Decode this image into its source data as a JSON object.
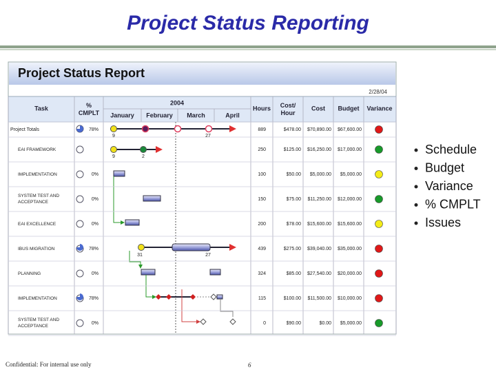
{
  "slide": {
    "title": "Project Status Reporting",
    "bullets": [
      "Schedule",
      "Budget",
      "Variance",
      "% CMPLT",
      "Issues"
    ],
    "footer": "Confidential: For internal use only",
    "page": "6"
  },
  "report": {
    "title": "Project Status Report",
    "date": "2/28/04",
    "headers": {
      "task": "Task",
      "pct": "% CMPLT",
      "year": "2004",
      "months": [
        "January",
        "February",
        "March",
        "April"
      ],
      "hours": "Hours",
      "cost_hour": "Cost/ Hour",
      "cost": "Cost",
      "budget": "Budget",
      "variance": "Variance"
    },
    "rows": [
      {
        "task": "Project Totals",
        "pct": "78%",
        "hours": "889",
        "cost_hour": "$478.00",
        "cost": "$70,890.00",
        "budget": "$67,600.00",
        "variance": "red",
        "marks": [
          "9",
          "27"
        ]
      },
      {
        "task": "EAI FRAMEWORK",
        "hours": "250",
        "cost_hour": "$125.00",
        "cost": "$16,250.00",
        "budget": "$17,000.00",
        "variance": "green",
        "marks": [
          "9",
          "2"
        ]
      },
      {
        "task": "IMPLEMENTATION",
        "pct": "0%",
        "hours": "100",
        "cost_hour": "$50.00",
        "cost": "$5,000.00",
        "budget": "$5,000.00",
        "variance": "yellow"
      },
      {
        "task": "SYSTEM TEST AND ACCEPTANCE",
        "pct": "0%",
        "hours": "150",
        "cost_hour": "$75.00",
        "cost": "$11,250.00",
        "budget": "$12,000.00",
        "variance": "green"
      },
      {
        "task": "EAI EXCELLENCE",
        "pct": "0%",
        "hours": "200",
        "cost_hour": "$78.00",
        "cost": "$15,600.00",
        "budget": "$15,600.00",
        "variance": "yellow"
      },
      {
        "task": "IBUS MIGRATION",
        "pct": "78%",
        "hours": "439",
        "cost_hour": "$275.00",
        "cost": "$39,040.00",
        "budget": "$35,000.00",
        "variance": "red",
        "marks": [
          "31",
          "27"
        ]
      },
      {
        "task": "PLANNING",
        "pct": "0%",
        "hours": "324",
        "cost_hour": "$85.00",
        "cost": "$27,540.00",
        "budget": "$20,000.00",
        "variance": "red"
      },
      {
        "task": "IMPLEMENTATION",
        "pct": "78%",
        "hours": "115",
        "cost_hour": "$100.00",
        "cost": "$11,500.00",
        "budget": "$10,000.00",
        "variance": "red"
      },
      {
        "task": "SYSTEM TEST AND ACCEPTANCE",
        "pct": "0%",
        "hours": "0",
        "cost_hour": "$90.00",
        "cost": "$0.00",
        "budget": "$5,000.00",
        "variance": "green"
      }
    ]
  }
}
